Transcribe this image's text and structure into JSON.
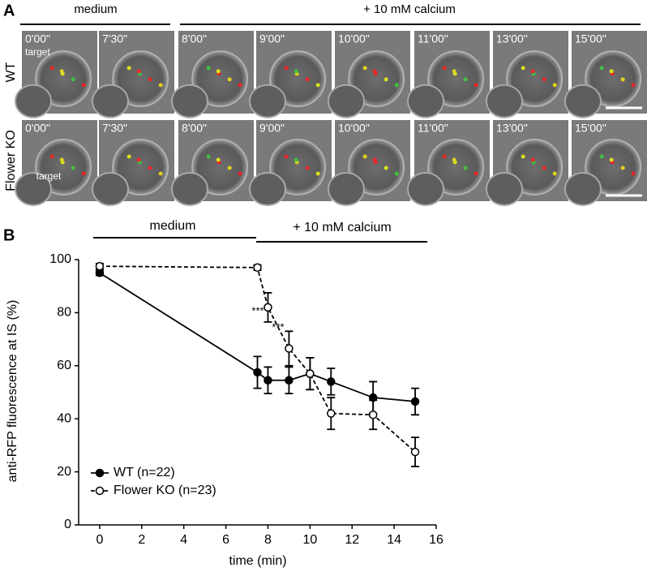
{
  "panel_a": {
    "label": "A",
    "phase_labels": [
      "medium",
      "+ 10 mM calcium"
    ],
    "rows": [
      {
        "name": "WT",
        "times": [
          "0'00\"",
          "7'30\"",
          "8'00\"",
          "9'00\"",
          "10'00\"",
          "11'00\"",
          "13'00\"",
          "15'00\""
        ],
        "target": "target"
      },
      {
        "name": "Flower KO",
        "times": [
          "0'00\"",
          "7'30\"",
          "8'00\"",
          "9'00\"",
          "10'00\"",
          "11'00\"",
          "13'00\"",
          "15'00\""
        ],
        "target": "target"
      }
    ]
  },
  "chart_data": {
    "type": "line",
    "label": "B",
    "phase_labels": [
      "medium",
      "+ 10 mM calcium"
    ],
    "xlabel": "time (min)",
    "ylabel": "anti-RFP fluorescence at IS (%)",
    "x": [
      0,
      7.5,
      8,
      9,
      10,
      11,
      13,
      15
    ],
    "series": [
      {
        "name": "WT (n=22)",
        "color": "#000000",
        "marker": "filled",
        "dash": "solid",
        "values": [
          95,
          57.5,
          54.5,
          54.5,
          57,
          54,
          48,
          46.5
        ],
        "errors": [
          1,
          6,
          5,
          5,
          6,
          5,
          6,
          5
        ]
      },
      {
        "name": "Flower KO (n=23)",
        "color": "#000000",
        "marker": "open",
        "dash": "dashed",
        "values": [
          97.5,
          97,
          82,
          66.5,
          57,
          42,
          41.5,
          27.5
        ],
        "errors": [
          1,
          1,
          5.5,
          6.5,
          6,
          6,
          5.5,
          5.5
        ]
      }
    ],
    "annotations": [
      "***",
      "***"
    ],
    "xlim": [
      -1,
      16
    ],
    "xticks": [
      0,
      2,
      4,
      6,
      8,
      10,
      12,
      14,
      16
    ],
    "ylim": [
      0,
      100
    ],
    "yticks": [
      0,
      20,
      40,
      60,
      80,
      100
    ],
    "legend": "lower left"
  }
}
